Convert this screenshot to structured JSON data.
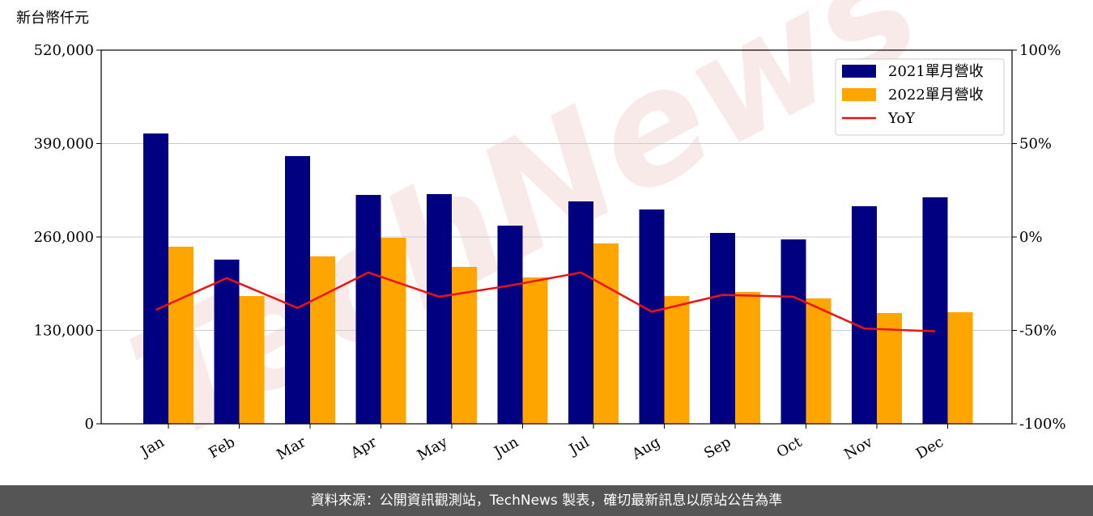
{
  "chart_data": {
    "type": "bar-line",
    "watermark": "TechNews",
    "y_label": "新台幣仟元",
    "categories": [
      "Jan",
      "Feb",
      "Mar",
      "Apr",
      "May",
      "Jun",
      "Jul",
      "Aug",
      "Sep",
      "Oct",
      "Nov",
      "Dec"
    ],
    "series": [
      {
        "name": "2021單月營收",
        "color": "#000080",
        "type": "bar",
        "values": [
          404000,
          228500,
          372600,
          318500,
          319700,
          275800,
          309500,
          298300,
          265600,
          256600,
          302800,
          315200
        ]
      },
      {
        "name": "2022單月營收",
        "color": "#ffa500",
        "type": "bar",
        "values": [
          246500,
          177800,
          233000,
          258900,
          218400,
          203700,
          251000,
          177800,
          183500,
          174500,
          154200,
          155300
        ]
      },
      {
        "name": "YoY",
        "color": "#ee1111",
        "type": "line",
        "axis": "y2",
        "values": [
          -39,
          -22,
          -38,
          -19,
          -32,
          -26,
          -19,
          -40,
          -31,
          -32,
          -49,
          -50.5
        ]
      }
    ],
    "ylim": [
      0,
      520000
    ],
    "yticks": [
      {
        "value": 0,
        "label": "0"
      },
      {
        "value": 130000,
        "label": "130,000"
      },
      {
        "value": 260000,
        "label": "260,000"
      },
      {
        "value": 390000,
        "label": "390,000"
      },
      {
        "value": 520000,
        "label": "520,000"
      }
    ],
    "y2lim": [
      -100,
      100
    ],
    "y2ticks": [
      {
        "value": -100,
        "label": "-100%"
      },
      {
        "value": -50,
        "label": "-50%"
      },
      {
        "value": 0,
        "label": "0%"
      },
      {
        "value": 50,
        "label": "50%"
      },
      {
        "value": 100,
        "label": "100%"
      }
    ],
    "grid": true,
    "legend": "upper right",
    "footer": "資料來源：公開資訊觀測站，TechNews 製表，確切最新訊息以原站公告為準"
  }
}
